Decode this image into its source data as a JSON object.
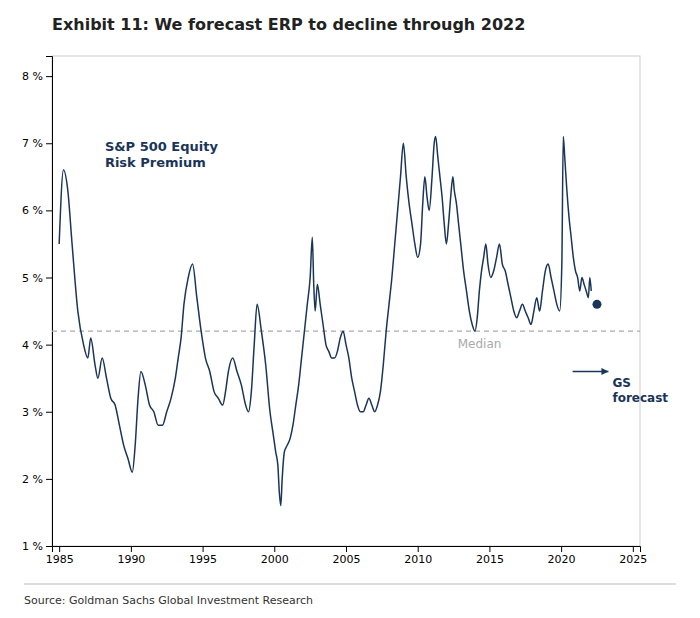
{
  "chart_data": {
    "type": "line",
    "title": "Exhibit 11: We forecast ERP to decline through 2022",
    "source": "Source: Goldman Sachs Global Investment Research",
    "x": [
      1985.0,
      1985.3,
      1985.6,
      1985.9,
      1986.3,
      1986.7,
      1987.0,
      1987.2,
      1987.5,
      1987.7,
      1988.0,
      1988.3,
      1988.6,
      1988.9,
      1989.2,
      1989.5,
      1989.8,
      1990.1,
      1990.3,
      1990.5,
      1990.7,
      1991.0,
      1991.3,
      1991.6,
      1991.9,
      1992.2,
      1992.5,
      1992.8,
      1993.1,
      1993.3,
      1993.5,
      1993.7,
      1994.0,
      1994.3,
      1994.6,
      1994.9,
      1995.2,
      1995.5,
      1995.8,
      1996.1,
      1996.4,
      1996.6,
      1996.8,
      1997.1,
      1997.4,
      1997.7,
      1998.0,
      1998.2,
      1998.4,
      1998.6,
      1998.8,
      1999.1,
      1999.4,
      1999.7,
      1999.9,
      2000.1,
      2000.25,
      2000.35,
      2000.45,
      2000.55,
      2000.7,
      2000.9,
      2001.1,
      2001.3,
      2001.5,
      2001.7,
      2001.9,
      2002.1,
      2002.3,
      2002.5,
      2002.65,
      2002.75,
      2002.85,
      2003.0,
      2003.2,
      2003.4,
      2003.6,
      2003.8,
      2004.0,
      2004.2,
      2004.4,
      2004.6,
      2004.8,
      2005.0,
      2005.2,
      2005.4,
      2005.6,
      2005.8,
      2006.0,
      2006.2,
      2006.4,
      2006.6,
      2006.8,
      2007.0,
      2007.2,
      2007.4,
      2007.6,
      2007.8,
      2008.0,
      2008.2,
      2008.4,
      2008.6,
      2008.8,
      2009.0,
      2009.2,
      2009.4,
      2009.6,
      2009.8,
      2010.0,
      2010.2,
      2010.35,
      2010.5,
      2010.65,
      2010.8,
      2011.0,
      2011.15,
      2011.25,
      2011.4,
      2011.55,
      2011.7,
      2011.85,
      2012.0,
      2012.15,
      2012.3,
      2012.45,
      2012.55,
      2012.7,
      2012.85,
      2013.0,
      2013.2,
      2013.4,
      2013.6,
      2013.8,
      2014.0,
      2014.15,
      2014.3,
      2014.45,
      2014.6,
      2014.75,
      2014.9,
      2015.1,
      2015.3,
      2015.5,
      2015.7,
      2015.9,
      2016.1,
      2016.3,
      2016.5,
      2016.7,
      2016.9,
      2017.1,
      2017.3,
      2017.5,
      2017.7,
      2017.9,
      2018.1,
      2018.3,
      2018.5,
      2018.7,
      2018.9,
      2019.1,
      2019.3,
      2019.5,
      2019.7,
      2019.9,
      2020.05,
      2020.15,
      2020.25,
      2020.4,
      2020.55,
      2020.7,
      2020.85,
      2021.0,
      2021.15,
      2021.3,
      2021.45,
      2021.6,
      2021.75,
      2021.9,
      2022.0,
      2022.1
    ],
    "series": [
      {
        "name": "S&P 500 Equity\nRisk Premium",
        "color": "#1a3558",
        "values": [
          5.5,
          6.6,
          6.3,
          5.5,
          4.5,
          4.0,
          3.8,
          4.1,
          3.7,
          3.5,
          3.8,
          3.5,
          3.2,
          3.1,
          2.8,
          2.5,
          2.3,
          2.1,
          2.5,
          3.2,
          3.6,
          3.4,
          3.1,
          3.0,
          2.8,
          2.8,
          3.0,
          3.2,
          3.5,
          3.8,
          4.1,
          4.6,
          5.0,
          5.2,
          4.7,
          4.2,
          3.8,
          3.6,
          3.3,
          3.2,
          3.1,
          3.3,
          3.6,
          3.8,
          3.6,
          3.4,
          3.1,
          3.0,
          3.3,
          4.0,
          4.6,
          4.2,
          3.7,
          3.0,
          2.7,
          2.4,
          2.2,
          1.8,
          1.6,
          2.0,
          2.4,
          2.5,
          2.6,
          2.8,
          3.1,
          3.4,
          3.8,
          4.2,
          4.6,
          5.0,
          5.6,
          4.9,
          4.5,
          4.9,
          4.6,
          4.3,
          4.0,
          3.9,
          3.8,
          3.8,
          3.9,
          4.1,
          4.2,
          4.0,
          3.8,
          3.5,
          3.3,
          3.1,
          3.0,
          3.0,
          3.1,
          3.2,
          3.1,
          3.0,
          3.1,
          3.3,
          3.7,
          4.2,
          4.6,
          5.0,
          5.5,
          6.0,
          6.5,
          7.0,
          6.5,
          6.1,
          5.8,
          5.5,
          5.3,
          5.5,
          6.1,
          6.5,
          6.2,
          6.0,
          6.5,
          7.0,
          7.1,
          6.8,
          6.5,
          6.2,
          5.8,
          5.5,
          5.8,
          6.2,
          6.5,
          6.3,
          6.1,
          5.8,
          5.5,
          5.1,
          4.8,
          4.5,
          4.3,
          4.2,
          4.4,
          4.8,
          5.1,
          5.3,
          5.5,
          5.2,
          5.0,
          5.1,
          5.3,
          5.5,
          5.2,
          5.1,
          4.9,
          4.7,
          4.5,
          4.4,
          4.5,
          4.6,
          4.5,
          4.4,
          4.3,
          4.5,
          4.7,
          4.5,
          4.8,
          5.1,
          5.2,
          5.0,
          4.8,
          4.6,
          4.5,
          5.2,
          7.1,
          6.8,
          6.3,
          5.9,
          5.6,
          5.3,
          5.1,
          5.0,
          4.8,
          5.0,
          4.9,
          4.8,
          4.7,
          5.0,
          4.8
        ]
      }
    ],
    "reference_lines": [
      {
        "label": "Median",
        "y": 4.2,
        "color": "#aaaaaa",
        "line_style": "dashed"
      }
    ],
    "points": [
      {
        "x": 2022.5,
        "y": 4.6,
        "color": "#1a3558"
      }
    ],
    "arrows": [
      {
        "label": "GS\nforecast",
        "x_start": 2020.8,
        "x_end": 2023.3,
        "y": 3.6,
        "color": "#1a3558"
      }
    ],
    "xlim": [
      1984.5,
      2025.5
    ],
    "ylim": [
      1.0,
      8.3
    ],
    "xticks": [
      1985,
      1990,
      1995,
      2000,
      2005,
      2010,
      2015,
      2020,
      2025
    ],
    "yticks": [
      {
        "value": 1,
        "label": "1 %"
      },
      {
        "value": 2,
        "label": "2 %"
      },
      {
        "value": 3,
        "label": "3 %"
      },
      {
        "value": 4,
        "label": "4 %"
      },
      {
        "value": 5,
        "label": "5 %"
      },
      {
        "value": 6,
        "label": "6 %"
      },
      {
        "value": 7,
        "label": "7 %"
      },
      {
        "value": 8,
        "label": "8 %"
      }
    ],
    "grid": false
  }
}
